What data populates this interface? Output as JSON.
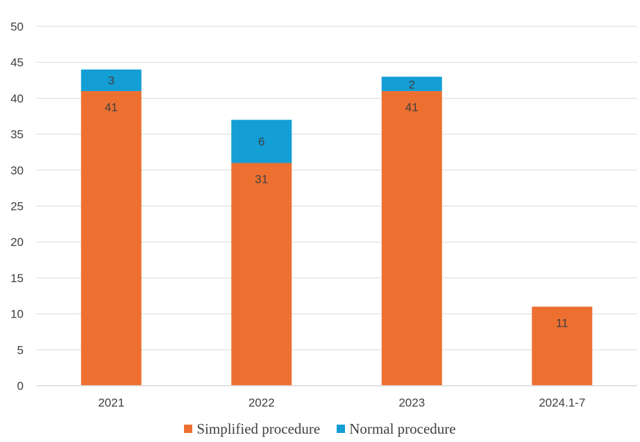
{
  "chart_data": {
    "type": "bar",
    "stacked": true,
    "categories": [
      "2021",
      "2022",
      "2023",
      "2024.1-7"
    ],
    "series": [
      {
        "name": "Simplified procedure",
        "color": "#ED7031",
        "values": [
          41,
          31,
          41,
          11
        ],
        "labels": [
          "41",
          "31",
          "41",
          "11"
        ]
      },
      {
        "name": "Normal procedure",
        "color": "#139ED6",
        "values": [
          3,
          6,
          2,
          0
        ],
        "labels": [
          "3",
          "6",
          "2",
          ""
        ]
      }
    ],
    "title": "",
    "xlabel": "",
    "ylabel": "",
    "ylim": [
      0,
      50
    ],
    "yticks": [
      "0",
      "5",
      "10",
      "15",
      "20",
      "25",
      "30",
      "35",
      "40",
      "45",
      "50"
    ],
    "grid": true,
    "legend_position": "bottom"
  }
}
